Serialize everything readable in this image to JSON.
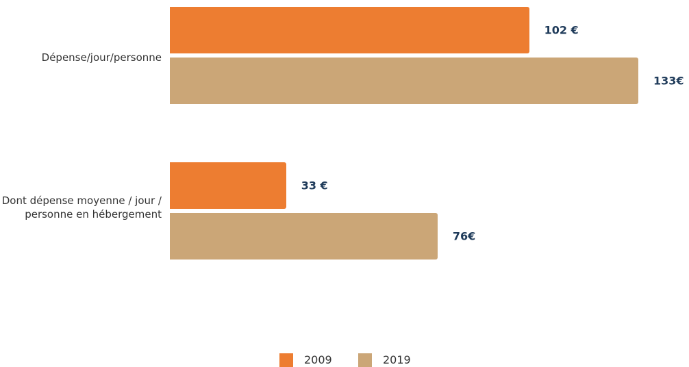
{
  "chart_data": {
    "type": "bar",
    "orientation": "horizontal",
    "categories": [
      "Dépense/jour/personne",
      "Dont dépense moyenne / jour / personne en hébergement"
    ],
    "series": [
      {
        "name": "2009",
        "color": "#ED7D31",
        "values": [
          102,
          33
        ],
        "value_labels": [
          "102 €",
          "33 €"
        ]
      },
      {
        "name": "2019",
        "color": "#CBA677",
        "values": [
          133,
          76
        ],
        "value_labels": [
          "133€",
          "76€"
        ]
      }
    ],
    "legend": "bottom"
  }
}
